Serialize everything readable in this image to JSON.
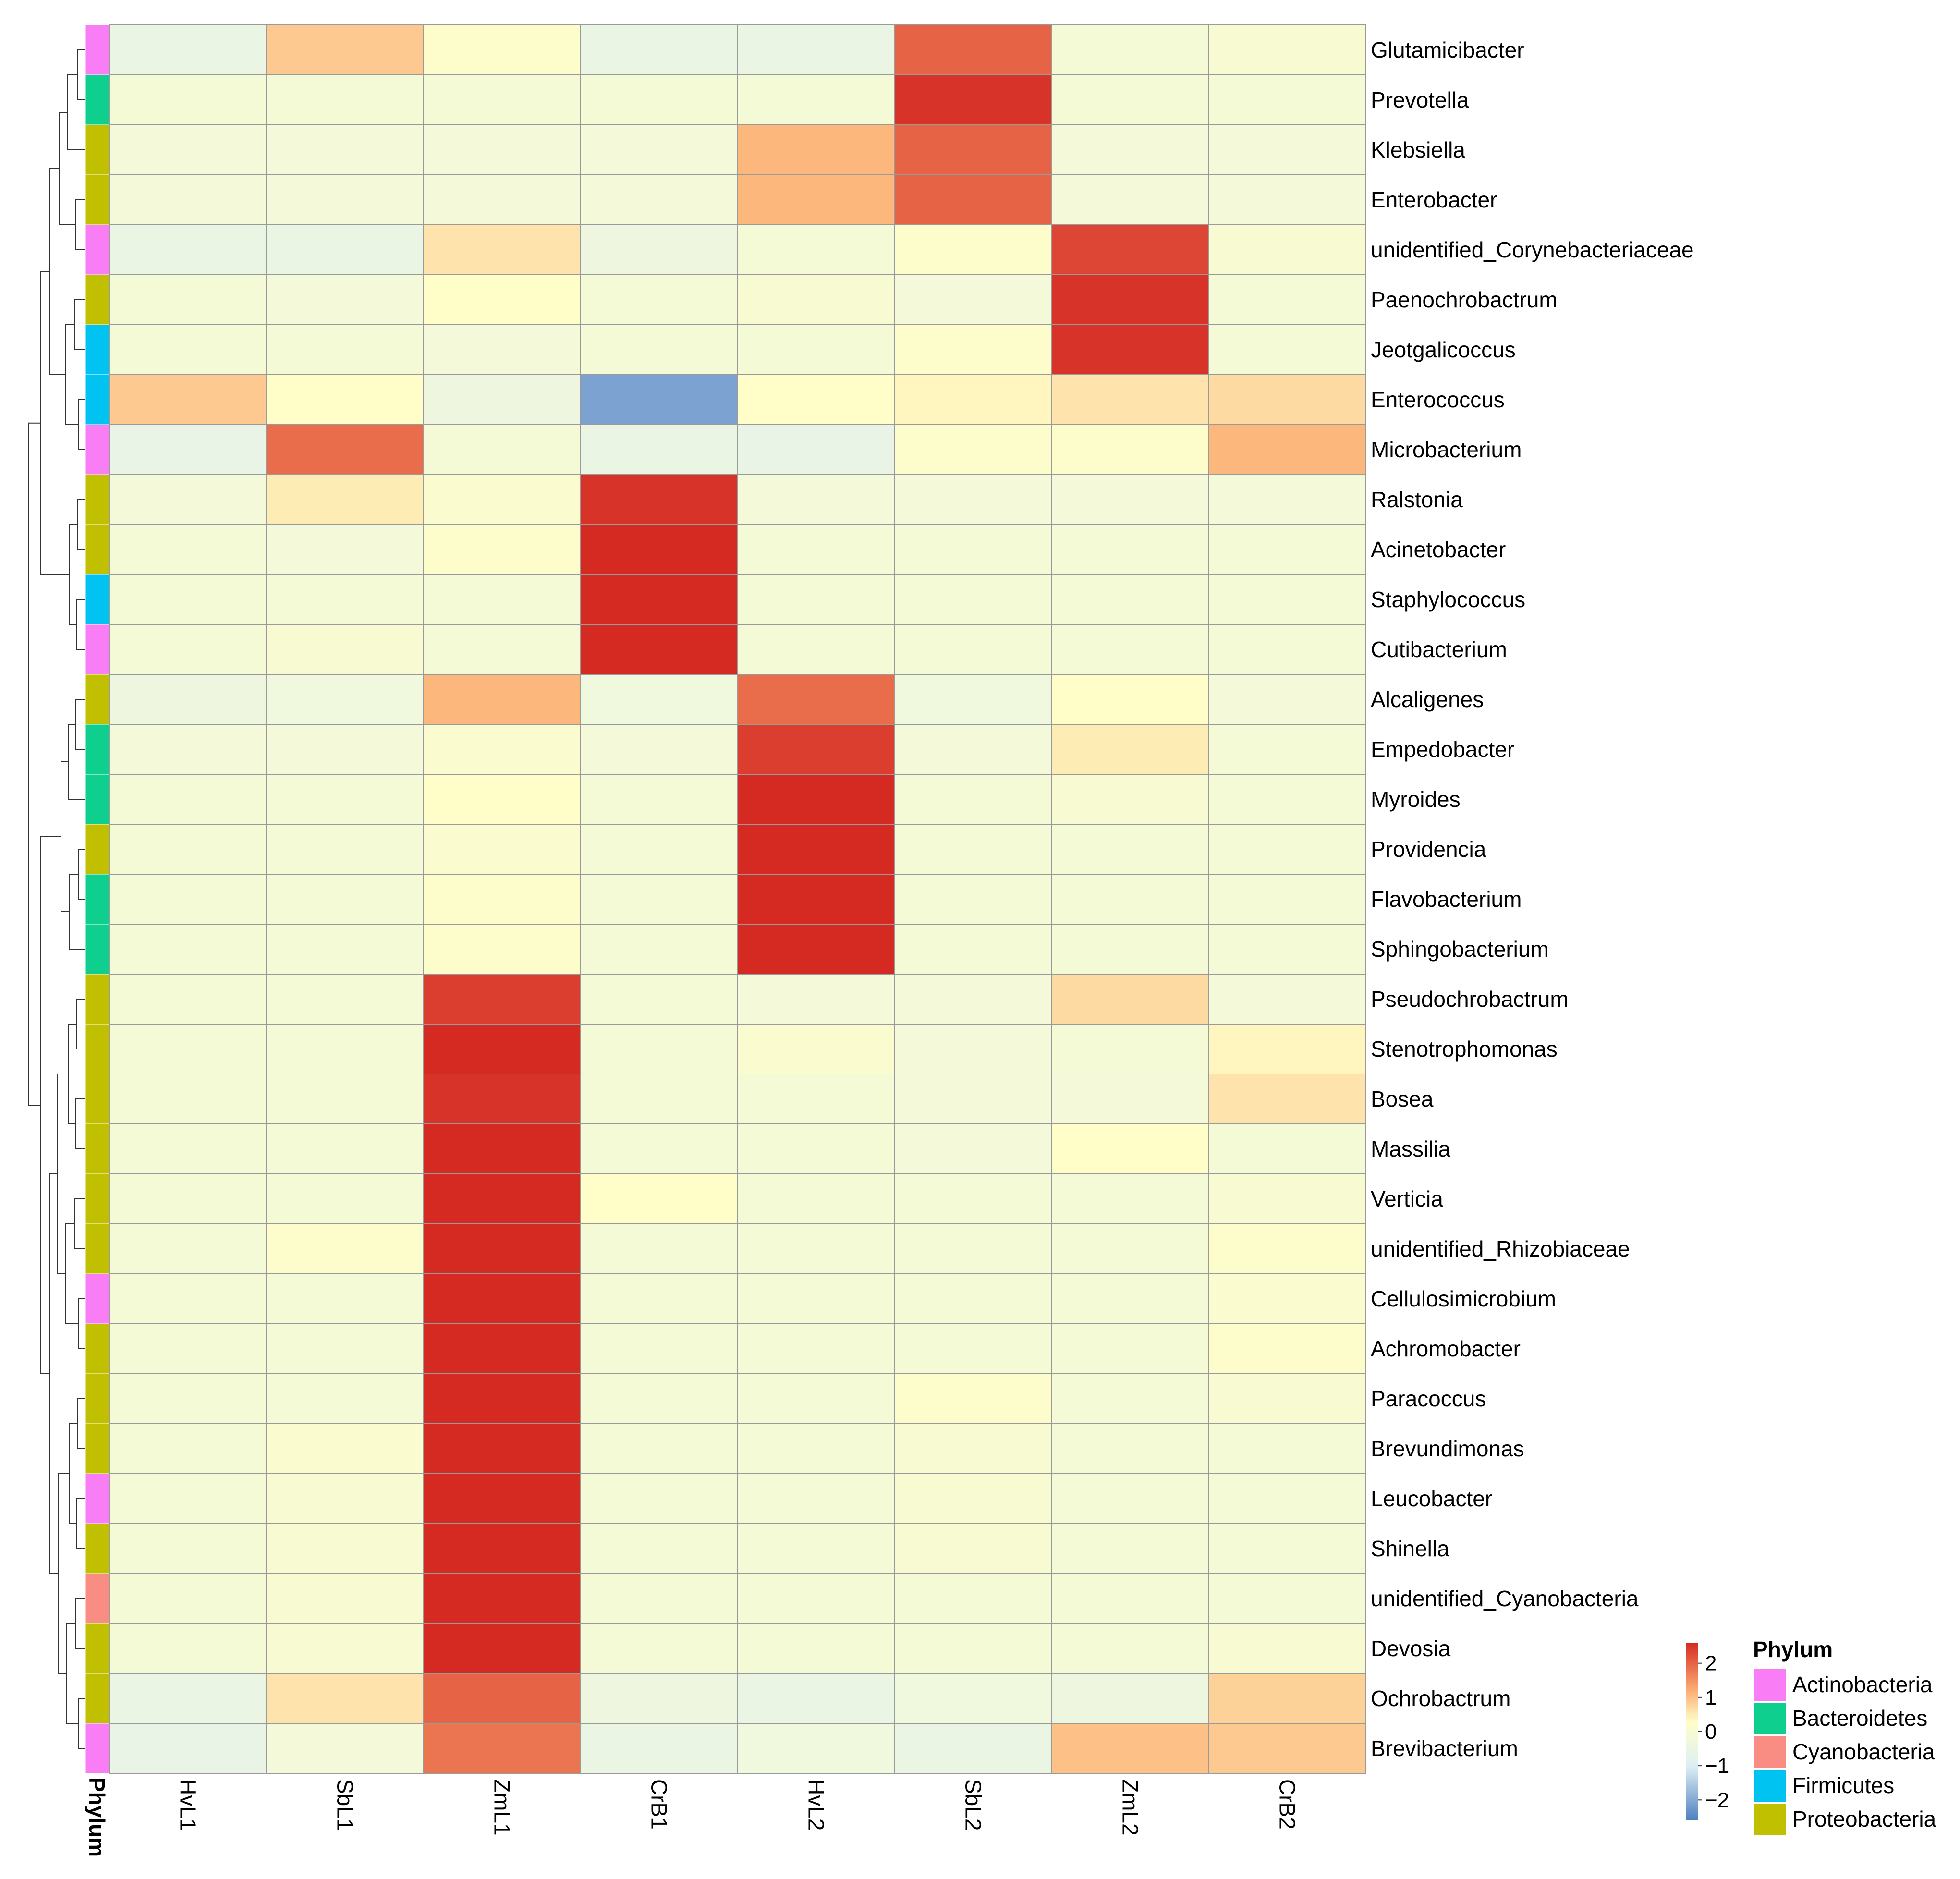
{
  "chart_data": {
    "type": "heatmap",
    "title": "",
    "columns": [
      "HvL1",
      "SbL1",
      "ZmL1",
      "CrB1",
      "HvL2",
      "SbL2",
      "ZmL2",
      "CrB2"
    ],
    "rows": [
      {
        "genus": "Glutamicibacter",
        "phylum": "Actinobacteria",
        "values": [
          -0.5,
          0.9,
          0.2,
          -0.5,
          -0.5,
          2.0,
          -0.1,
          0.0
        ]
      },
      {
        "genus": "Prevotella",
        "phylum": "Bacteroidetes",
        "values": [
          -0.1,
          -0.1,
          -0.1,
          -0.1,
          -0.1,
          2.5,
          -0.1,
          -0.1
        ]
      },
      {
        "genus": "Klebsiella",
        "phylum": "Proteobacteria",
        "values": [
          -0.2,
          -0.2,
          -0.2,
          -0.2,
          1.1,
          2.0,
          -0.2,
          -0.2
        ]
      },
      {
        "genus": "Enterobacter",
        "phylum": "Proteobacteria",
        "values": [
          -0.2,
          -0.2,
          -0.2,
          -0.2,
          1.1,
          2.0,
          -0.2,
          -0.2
        ]
      },
      {
        "genus": "unidentified_Corynebacteriaceae",
        "phylum": "Actinobacteria",
        "values": [
          -0.5,
          -0.5,
          0.6,
          -0.4,
          -0.1,
          0.2,
          2.3,
          0.0
        ]
      },
      {
        "genus": "Paenochrobactrum",
        "phylum": "Proteobacteria",
        "values": [
          -0.1,
          -0.2,
          0.3,
          -0.1,
          0.0,
          -0.2,
          2.5,
          -0.1
        ]
      },
      {
        "genus": "Jeotgalicoccus",
        "phylum": "Firmicutes",
        "values": [
          -0.1,
          -0.1,
          -0.2,
          -0.1,
          -0.1,
          0.2,
          2.5,
          -0.1
        ]
      },
      {
        "genus": "Enterococcus",
        "phylum": "Firmicutes",
        "values": [
          0.9,
          0.3,
          -0.4,
          -2.1,
          0.3,
          0.4,
          0.6,
          0.7
        ]
      },
      {
        "genus": "Microbacterium",
        "phylum": "Actinobacteria",
        "values": [
          -0.6,
          1.9,
          -0.1,
          -0.5,
          -0.6,
          0.2,
          0.2,
          1.1
        ]
      },
      {
        "genus": "Ralstonia",
        "phylum": "Proteobacteria",
        "values": [
          -0.2,
          0.5,
          0.1,
          2.5,
          -0.2,
          -0.2,
          -0.2,
          -0.2
        ]
      },
      {
        "genus": "Acinetobacter",
        "phylum": "Proteobacteria",
        "values": [
          -0.1,
          -0.2,
          0.2,
          2.6,
          -0.1,
          -0.1,
          -0.1,
          -0.1
        ]
      },
      {
        "genus": "Staphylococcus",
        "phylum": "Firmicutes",
        "values": [
          -0.1,
          -0.1,
          -0.1,
          2.6,
          -0.1,
          -0.1,
          -0.1,
          -0.1
        ]
      },
      {
        "genus": "Cutibacterium",
        "phylum": "Actinobacteria",
        "values": [
          -0.1,
          0.0,
          -0.1,
          2.6,
          -0.1,
          -0.1,
          -0.1,
          -0.1
        ]
      },
      {
        "genus": "Alcaligenes",
        "phylum": "Proteobacteria",
        "values": [
          -0.4,
          -0.3,
          1.1,
          -0.3,
          1.9,
          -0.3,
          0.3,
          -0.2
        ]
      },
      {
        "genus": "Empedobacter",
        "phylum": "Bacteroidetes",
        "values": [
          -0.2,
          -0.2,
          0.1,
          -0.2,
          2.4,
          -0.2,
          0.5,
          -0.1
        ]
      },
      {
        "genus": "Myroides",
        "phylum": "Bacteroidetes",
        "values": [
          -0.1,
          -0.1,
          0.3,
          -0.1,
          2.6,
          -0.1,
          0.0,
          -0.1
        ]
      },
      {
        "genus": "Providencia",
        "phylum": "Proteobacteria",
        "values": [
          -0.1,
          -0.1,
          0.1,
          -0.1,
          2.6,
          -0.1,
          -0.1,
          -0.1
        ]
      },
      {
        "genus": "Flavobacterium",
        "phylum": "Bacteroidetes",
        "values": [
          -0.1,
          -0.1,
          0.2,
          -0.1,
          2.6,
          -0.1,
          -0.1,
          -0.1
        ]
      },
      {
        "genus": "Sphingobacterium",
        "phylum": "Bacteroidetes",
        "values": [
          -0.1,
          -0.1,
          0.2,
          -0.1,
          2.6,
          -0.1,
          -0.1,
          -0.1
        ]
      },
      {
        "genus": "Pseudochrobactrum",
        "phylum": "Proteobacteria",
        "values": [
          -0.1,
          -0.1,
          2.4,
          -0.1,
          -0.2,
          -0.2,
          0.7,
          -0.2
        ]
      },
      {
        "genus": "Stenotrophomonas",
        "phylum": "Proteobacteria",
        "values": [
          -0.1,
          -0.1,
          2.6,
          -0.1,
          0.1,
          -0.2,
          -0.1,
          0.4
        ]
      },
      {
        "genus": "Bosea",
        "phylum": "Proteobacteria",
        "values": [
          -0.1,
          -0.1,
          2.5,
          -0.1,
          -0.1,
          -0.2,
          -0.2,
          0.6
        ]
      },
      {
        "genus": "Massilia",
        "phylum": "Proteobacteria",
        "values": [
          -0.1,
          -0.1,
          2.6,
          -0.1,
          -0.1,
          -0.2,
          0.3,
          -0.1
        ]
      },
      {
        "genus": "Verticia",
        "phylum": "Proteobacteria",
        "values": [
          -0.1,
          -0.1,
          2.6,
          0.3,
          -0.1,
          -0.1,
          -0.1,
          0.0
        ]
      },
      {
        "genus": "unidentified_Rhizobiaceae",
        "phylum": "Proteobacteria",
        "values": [
          -0.1,
          0.2,
          2.6,
          -0.1,
          -0.1,
          -0.1,
          -0.1,
          0.2
        ]
      },
      {
        "genus": "Cellulosimicrobium",
        "phylum": "Actinobacteria",
        "values": [
          -0.1,
          -0.1,
          2.6,
          -0.1,
          -0.1,
          -0.1,
          -0.1,
          0.1
        ]
      },
      {
        "genus": "Achromobacter",
        "phylum": "Proteobacteria",
        "values": [
          -0.1,
          -0.1,
          2.6,
          -0.1,
          -0.1,
          -0.1,
          -0.1,
          0.2
        ]
      },
      {
        "genus": "Paracoccus",
        "phylum": "Proteobacteria",
        "values": [
          -0.1,
          -0.1,
          2.6,
          -0.1,
          -0.1,
          0.2,
          -0.1,
          0.0
        ]
      },
      {
        "genus": "Brevundimonas",
        "phylum": "Proteobacteria",
        "values": [
          -0.1,
          0.1,
          2.6,
          -0.1,
          -0.1,
          0.0,
          -0.1,
          -0.1
        ]
      },
      {
        "genus": "Leucobacter",
        "phylum": "Actinobacteria",
        "values": [
          -0.1,
          0.0,
          2.6,
          -0.1,
          -0.1,
          0.0,
          -0.1,
          -0.1
        ]
      },
      {
        "genus": "Shinella",
        "phylum": "Proteobacteria",
        "values": [
          -0.1,
          0.0,
          2.6,
          -0.1,
          -0.1,
          0.0,
          -0.1,
          -0.1
        ]
      },
      {
        "genus": "unidentified_Cyanobacteria",
        "phylum": "Cyanobacteria",
        "values": [
          -0.1,
          0.0,
          2.6,
          -0.1,
          -0.1,
          -0.1,
          -0.1,
          -0.1
        ]
      },
      {
        "genus": "Devosia",
        "phylum": "Proteobacteria",
        "values": [
          -0.1,
          0.0,
          2.6,
          -0.1,
          -0.1,
          -0.1,
          -0.1,
          0.0
        ]
      },
      {
        "genus": "Ochrobactrum",
        "phylum": "Proteobacteria",
        "values": [
          -0.5,
          0.6,
          2.0,
          -0.4,
          -0.5,
          -0.3,
          -0.4,
          0.8
        ]
      },
      {
        "genus": "Brevibacterium",
        "phylum": "Actinobacteria",
        "values": [
          -0.6,
          -0.2,
          1.8,
          -0.5,
          -0.3,
          -0.5,
          1.0,
          0.9
        ]
      }
    ],
    "annotation_label": "Phylum",
    "scale": {
      "range": [
        -2.6,
        2.6
      ],
      "ticks": [
        2,
        1,
        0,
        -1,
        -2
      ],
      "tick_labels": [
        "2",
        "1",
        "0",
        "−1",
        "−2"
      ],
      "colors": {
        "low": "#4f7fc0",
        "mid_low": "#dff0f5",
        "mid": "#fffec8",
        "mid_high": "#fcae74",
        "high": "#d52a22"
      }
    },
    "legend": {
      "title": "Phylum",
      "position": "bottom-right",
      "items": [
        {
          "label": "Actinobacteria",
          "color": "#f97ef5"
        },
        {
          "label": "Bacteroidetes",
          "color": "#0ecf8d"
        },
        {
          "label": "Cyanobacteria",
          "color": "#f98d84"
        },
        {
          "label": "Firmicutes",
          "color": "#00c3f2"
        },
        {
          "label": "Proteobacteria",
          "color": "#c0c000"
        }
      ]
    },
    "dendrogram": {
      "description": "row clustering tree",
      "clusters": [
        [
          0,
          8
        ],
        [
          9,
          12
        ],
        [
          13,
          18
        ],
        [
          19,
          34
        ]
      ]
    }
  }
}
